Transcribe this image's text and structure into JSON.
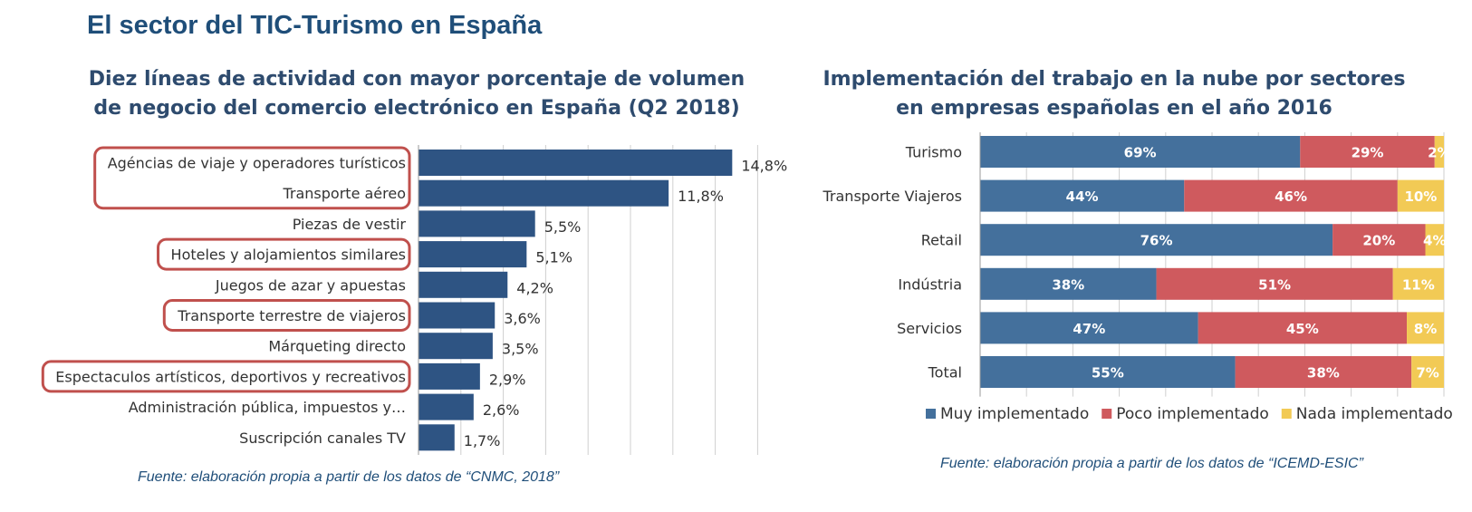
{
  "page": {
    "title": "El sector del TIC-Turismo en España"
  },
  "left": {
    "title_lines": [
      "Diez líneas de actividad con mayor porcentaje de volumen",
      "de negocio del comercio electrónico en España (Q2 2018)"
    ],
    "source": "Fuente: elaboración propia a partir de los datos de “CNMC, 2018”"
  },
  "right": {
    "title_lines": [
      "Implementación del trabajo en la nube por sectores",
      "en empresas españolas en el año 2016"
    ],
    "source": "Fuente: elaboración propia a partir de los datos de “ICEMD-ESIC”"
  },
  "colors": {
    "bar": "#2e5483",
    "muy": "#44709c",
    "poco": "#cf5a5e",
    "nada": "#f2ca55",
    "highlight": "#c0504d",
    "grid": "#cfcfcf"
  },
  "chart_data": [
    {
      "type": "bar",
      "orientation": "horizontal",
      "title": "Diez líneas de actividad con mayor porcentaje de volumen de negocio del comercio electrónico en España (Q2 2018)",
      "categories": [
        "Agéncias de viaje y operadores turísticos",
        "Transporte aéreo",
        "Piezas de vestir",
        "Hoteles y alojamientos similares",
        "Juegos de azar y apuestas",
        "Transporte terrestre de viajeros",
        "Márqueting directo",
        "Espectaculos artísticos, deportivos y recreativos",
        "Administración pública, impuestos y…",
        "Suscripción canales TV"
      ],
      "values": [
        14.8,
        11.8,
        5.5,
        5.1,
        4.2,
        3.6,
        3.5,
        2.9,
        2.6,
        1.7
      ],
      "value_labels": [
        "14,8%",
        "11,8%",
        "5,5%",
        "5,1%",
        "4,2%",
        "3,6%",
        "3,5%",
        "2,9%",
        "2,6%",
        "1,7%"
      ],
      "highlighted_groups": [
        [
          0,
          1
        ],
        [
          3
        ],
        [
          5
        ],
        [
          7
        ]
      ],
      "xlim": [
        0,
        16
      ],
      "grid": true
    },
    {
      "type": "bar",
      "orientation": "horizontal",
      "stacked": true,
      "percent": true,
      "title": "Implementación del trabajo en la nube por sectores en empresas españolas en el año 2016",
      "categories": [
        "Turismo",
        "Transporte Viajeros",
        "Retail",
        "Indústria",
        "Servicios",
        "Total"
      ],
      "series": [
        {
          "name": "Muy implementado",
          "values": [
            69,
            44,
            76,
            38,
            47,
            55
          ],
          "labels": [
            "69%",
            "44%",
            "76%",
            "38%",
            "47%",
            "55%"
          ]
        },
        {
          "name": "Poco implementado",
          "values": [
            29,
            46,
            20,
            51,
            45,
            38
          ],
          "labels": [
            "29%",
            "46%",
            "20%",
            "51%",
            "45%",
            "38%"
          ]
        },
        {
          "name": "Nada implementado",
          "values": [
            2,
            10,
            4,
            11,
            8,
            7
          ],
          "labels": [
            "2%",
            "10%",
            "4%",
            "11%",
            "8%",
            "7%"
          ]
        }
      ],
      "legend": "bottom",
      "grid": true
    }
  ]
}
